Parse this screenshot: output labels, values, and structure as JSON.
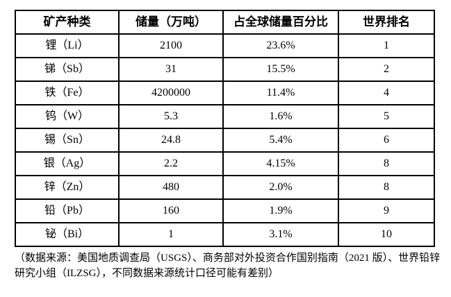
{
  "table": {
    "columns": [
      {
        "key": "mineral",
        "label": "矿产种类"
      },
      {
        "key": "reserves",
        "label": "储量（万吨）"
      },
      {
        "key": "global_share",
        "label": "占全球储量百分比"
      },
      {
        "key": "world_rank",
        "label": "世界排名"
      }
    ],
    "rows": [
      {
        "mineral": "锂（Li）",
        "reserves": "2100",
        "global_share": "23.6%",
        "world_rank": "1"
      },
      {
        "mineral": "锑（Sb）",
        "reserves": "31",
        "global_share": "15.5%",
        "world_rank": "2"
      },
      {
        "mineral": "铁（Fe）",
        "reserves": "4200000",
        "global_share": "11.4%",
        "world_rank": "4"
      },
      {
        "mineral": "钨（W）",
        "reserves": "5.3",
        "global_share": "1.6%",
        "world_rank": "5"
      },
      {
        "mineral": "锡（Sn）",
        "reserves": "24.8",
        "global_share": "5.4%",
        "world_rank": "6"
      },
      {
        "mineral": "银（Ag）",
        "reserves": "2.2",
        "global_share": "4.15%",
        "world_rank": "8"
      },
      {
        "mineral": "锌（Zn）",
        "reserves": "480",
        "global_share": "2.0%",
        "world_rank": "8"
      },
      {
        "mineral": "铅（Pb）",
        "reserves": "160",
        "global_share": "1.9%",
        "world_rank": "9"
      },
      {
        "mineral": "铋（Bi）",
        "reserves": "1",
        "global_share": "3.1%",
        "world_rank": "10"
      }
    ]
  },
  "footnote": "（数据来源：美国地质调查局（USGS）、商务部对外投资合作国别指南（2021 版）、世界铅锌研究小组（ILZSG），不同数据来源统计口径可能有差别）",
  "colors": {
    "border": "#000000",
    "text": "#000000",
    "background": "#ffffff"
  }
}
